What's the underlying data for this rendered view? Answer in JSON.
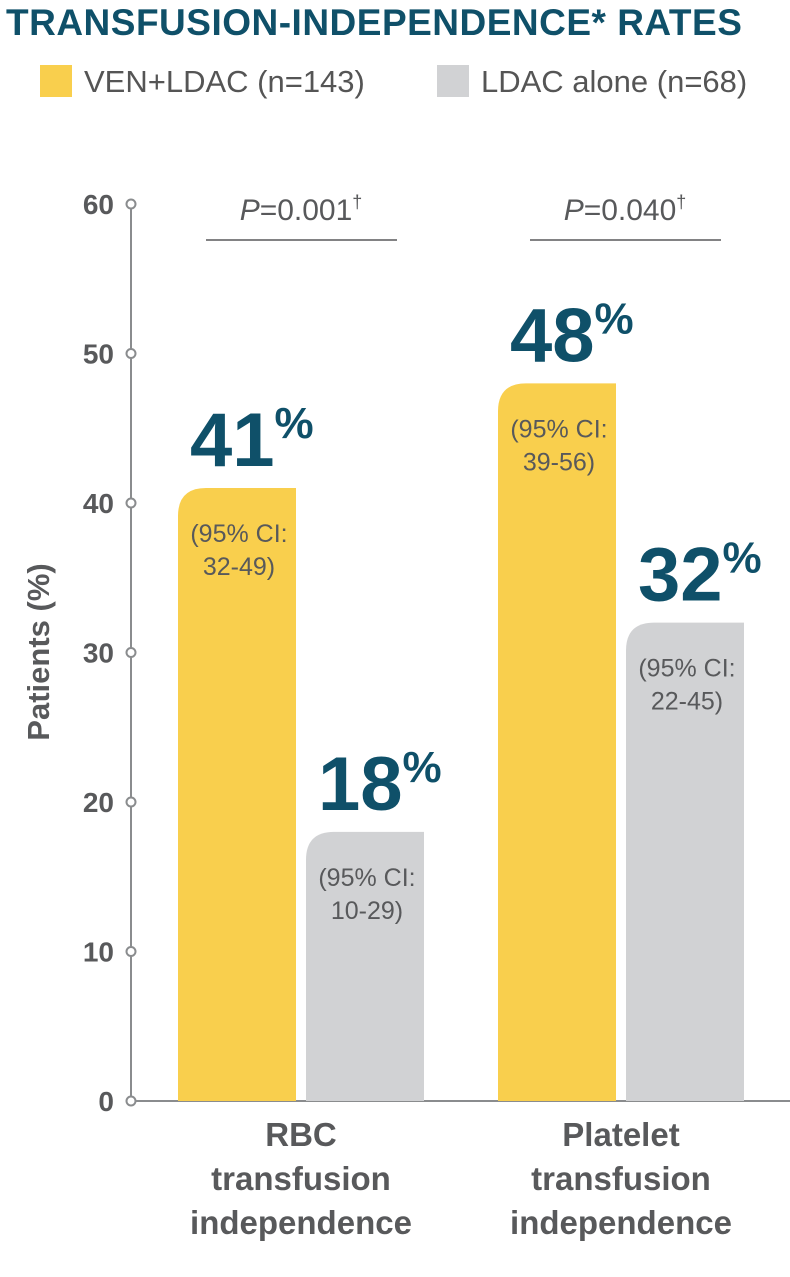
{
  "title": "TRANSFUSION-INDEPENDENCE* RATES",
  "legend": [
    {
      "label": "VEN+LDAC (n=143)",
      "color": "#f9cf4d"
    },
    {
      "label": "LDAC alone (n=68)",
      "color": "#d1d2d4"
    }
  ],
  "chart_data": {
    "type": "bar",
    "ylabel": "Patients (%)",
    "ylim": [
      0,
      60
    ],
    "yticks": [
      "0",
      "10",
      "20",
      "30",
      "40",
      "50",
      "60"
    ],
    "categories": [
      [
        "RBC",
        "transfusion",
        "independence"
      ],
      [
        "Platelet",
        "transfusion",
        "independence"
      ]
    ],
    "series": [
      {
        "name": "VEN+LDAC (n=143)",
        "color": "#f9cf4d",
        "values": [
          41,
          48
        ],
        "value_labels": [
          "41",
          "48"
        ],
        "ci_labels": [
          [
            "(95% CI:",
            "32-49)"
          ],
          [
            "(95% CI:",
            "39-56)"
          ]
        ]
      },
      {
        "name": "LDAC alone (n=68)",
        "color": "#d1d2d4",
        "values": [
          18,
          32
        ],
        "value_labels": [
          "18",
          "32"
        ],
        "ci_labels": [
          [
            "(95% CI:",
            "10-29)"
          ],
          [
            "(95% CI:",
            "22-45)"
          ]
        ]
      }
    ],
    "percent_sign": "%",
    "pvalues": [
      {
        "p": "P",
        "rest": "=0.001",
        "dagger": "†"
      },
      {
        "p": "P",
        "rest": "=0.040",
        "dagger": "†"
      }
    ],
    "grid": false
  }
}
